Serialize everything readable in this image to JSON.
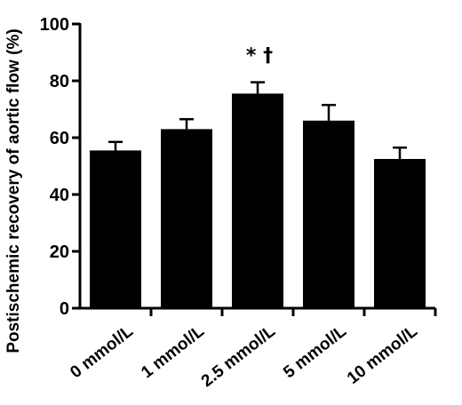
{
  "chart_data": {
    "type": "bar",
    "title": "",
    "xlabel": "",
    "ylabel": "Postischemic recovery of aortic flow (%)",
    "ylim": [
      0,
      100
    ],
    "yticks": [
      0,
      20,
      40,
      60,
      80,
      100
    ],
    "grid": false,
    "categories": [
      "0 mmol/L",
      "1 mmol/L",
      "2.5 mmol/L",
      "5 mmol/L",
      "10 mmol/L"
    ],
    "values": [
      55.5,
      63,
      75.5,
      66,
      52.5
    ],
    "errors": [
      3,
      3.5,
      4,
      5.5,
      4
    ],
    "annotations": [
      {
        "category": "2.5 mmol/L",
        "text": "* †"
      }
    ],
    "bar_color": "#000000"
  }
}
